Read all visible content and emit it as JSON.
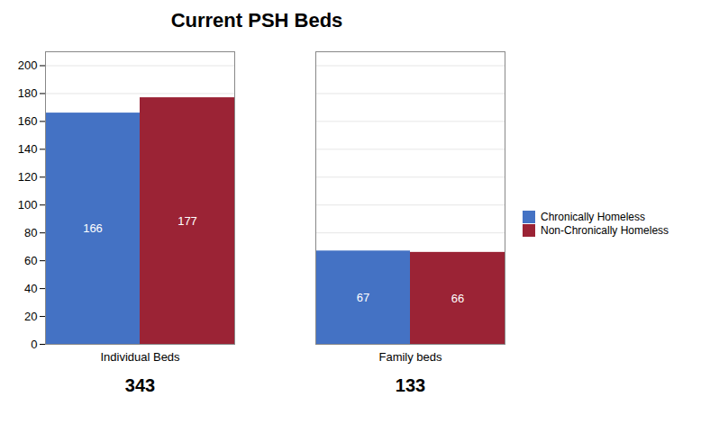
{
  "chart_data": {
    "type": "bar",
    "title": "Current PSH Beds",
    "categories": [
      "Individual Beds",
      "Family beds"
    ],
    "series": [
      {
        "name": "Chronically Homeless",
        "color": "#4472C4",
        "values": [
          166,
          67
        ]
      },
      {
        "name": "Non-Chronically Homeless",
        "color": "#9B2335",
        "values": [
          177,
          66
        ]
      }
    ],
    "totals": [
      343,
      133
    ],
    "ylim": [
      0,
      210
    ],
    "yticks": [
      0,
      20,
      40,
      60,
      80,
      100,
      120,
      140,
      160,
      180,
      200
    ],
    "grid": true,
    "legend": "right",
    "data_labels": true
  }
}
